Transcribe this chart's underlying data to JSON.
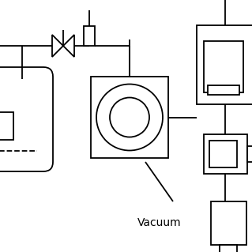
{
  "bg_color": "#ffffff",
  "line_color": "#000000",
  "lw": 1.3,
  "fig_size": [
    3.19,
    3.19
  ],
  "dpi": 100,
  "vacuum_label": "Vacuum",
  "xlim": [
    0,
    319
  ],
  "ylim": [
    0,
    319
  ]
}
